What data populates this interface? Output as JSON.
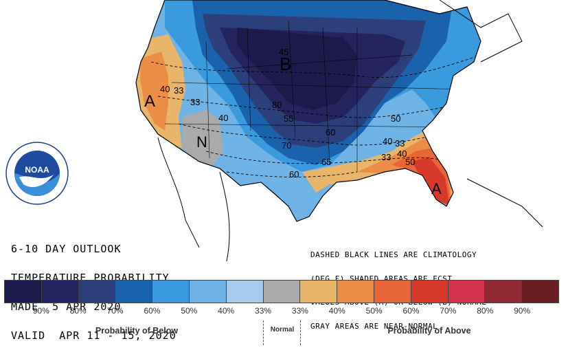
{
  "title_lines": [
    "6-10 DAY OUTLOOK",
    "TEMPERATURE PROBABILITY",
    "MADE  5 APR 2020",
    "VALID  APR 11 - 15, 2020"
  ],
  "note_lines": [
    "DASHED BLACK LINES ARE CLIMATOLOGY",
    "(DEG F) SHADED AREAS ARE FCST",
    "VALUES ABOVE (A) OR BELOW (B) NORMAL",
    "GRAY AREAS ARE NEAR-NORMAL"
  ],
  "logo_text": "NOAA",
  "logo_ring_text": "NATIONAL OCEANIC AND ATMOSPHERIC ADMINISTRATION · U.S. DEPARTMENT OF COMMERCE",
  "map_labels": {
    "below": "B",
    "above_west": "A",
    "above_southeast": "A",
    "normal": "N"
  },
  "contour_labels": [
    "40",
    "33",
    "33",
    "40",
    "80",
    "55",
    "60",
    "70",
    "65",
    "60",
    "50",
    "40",
    "33",
    "33",
    "40",
    "50",
    "45"
  ],
  "legend": {
    "colors": [
      "#1c1a4b",
      "#25245e",
      "#2c3f7a",
      "#1b62ad",
      "#3a9ade",
      "#6fb3e6",
      "#a6c9ec",
      "#aaaaaa",
      "#e9b56a",
      "#ec8d45",
      "#e8653a",
      "#d73a2a",
      "#d4334d",
      "#8f2a34",
      "#6b1f24"
    ],
    "ticks_below": [
      "90%",
      "80%",
      "70%",
      "60%",
      "50%",
      "40%",
      "33%"
    ],
    "ticks_above": [
      "33%",
      "40%",
      "50%",
      "60%",
      "70%",
      "80%",
      "90%"
    ],
    "category_below": "Probability of Below",
    "category_normal": "Normal",
    "category_above": "Probability of Above"
  }
}
